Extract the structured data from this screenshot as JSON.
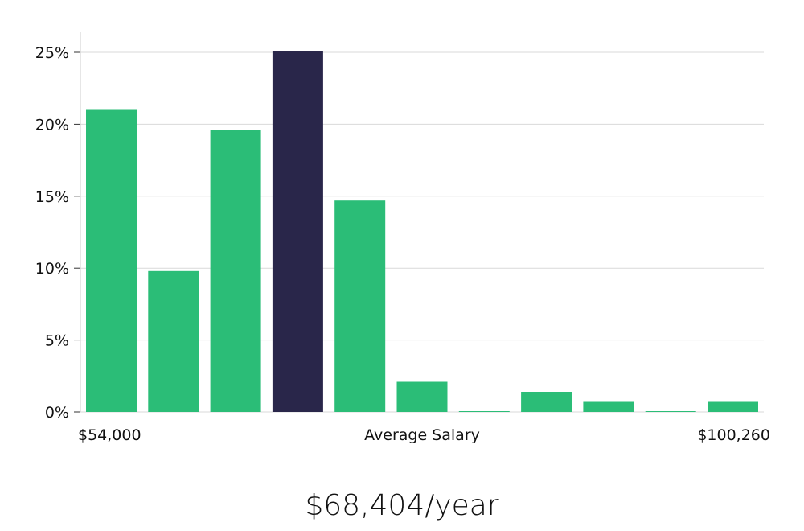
{
  "chart_data": {
    "type": "bar",
    "values": [
      21.0,
      9.8,
      19.6,
      25.1,
      14.7,
      2.1,
      0.05,
      1.4,
      0.7,
      0.05,
      0.7
    ],
    "highlight_index": 3,
    "ylim": [
      0,
      25
    ],
    "yticks": [
      0,
      5,
      10,
      15,
      20,
      25
    ],
    "ytick_labels": [
      "0%",
      "5%",
      "10%",
      "15%",
      "20%",
      "25%"
    ],
    "x_min_label": "$54,000",
    "x_max_label": "$100,260",
    "xlabel": "Average Salary",
    "grid": true,
    "colors": {
      "bar": "#2bbd77",
      "highlight": "#29264a",
      "grid": "#d9d9d9",
      "axis": "#cccccc"
    }
  },
  "summary": {
    "salary": "$68,404/year"
  }
}
